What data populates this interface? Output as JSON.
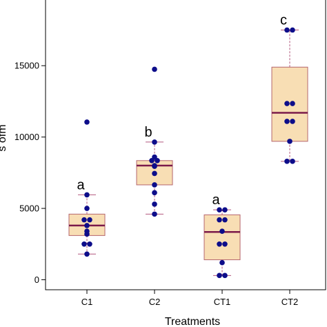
{
  "chart_data": {
    "type": "box",
    "xlabel": "Treatments",
    "ylabel": "s ofm",
    "ylim": [
      -700,
      19700
    ],
    "yticks": [
      0,
      5000,
      10000,
      15000
    ],
    "grid": false,
    "legend": "none",
    "colors": {
      "box_fill": "#f8deb4",
      "box_edge": "#b5656d",
      "median": "#7b1a4a",
      "whisker": "#b2577e",
      "points": "#0d0d8a"
    },
    "categories": [
      "C1",
      "C2",
      "CT1",
      "CT2"
    ],
    "boxes": [
      {
        "category": "C1",
        "whisker_low": 1800,
        "q1": 3100,
        "median": 3800,
        "q3": 4600,
        "whisker_high": 5950,
        "letter": "a",
        "points": [
          11050,
          5950,
          5000,
          4200,
          4200,
          3800,
          3400,
          3200,
          2500,
          2500,
          1800
        ]
      },
      {
        "category": "C2",
        "whisker_low": 4600,
        "q1": 6650,
        "median": 8000,
        "q3": 8350,
        "whisker_high": 9650,
        "letter": "b",
        "points": [
          14750,
          9650,
          8600,
          8350,
          8350,
          8000,
          7950,
          7450,
          6650,
          6100,
          5300,
          4600
        ]
      },
      {
        "category": "CT1",
        "whisker_low": 300,
        "q1": 1400,
        "median": 3350,
        "q3": 4550,
        "whisker_high": 4900,
        "letter": "a",
        "points": [
          4900,
          4900,
          4200,
          4200,
          3400,
          2500,
          2500,
          1200,
          300,
          300
        ]
      },
      {
        "category": "CT2",
        "whisker_low": 8300,
        "q1": 9700,
        "median": 11700,
        "q3": 14900,
        "whisker_high": 17500,
        "letter": "c",
        "points": [
          17500,
          17500,
          12350,
          12350,
          11100,
          11100,
          9700,
          8300,
          8300
        ]
      }
    ]
  }
}
